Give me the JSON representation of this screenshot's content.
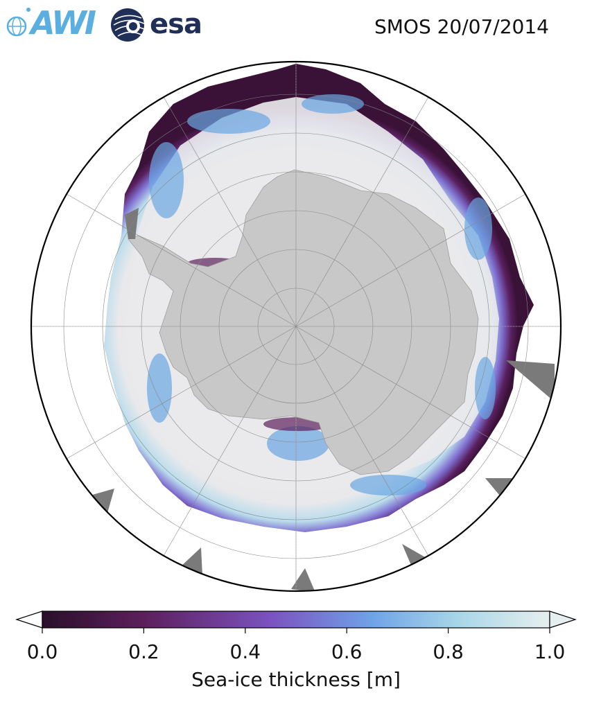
{
  "header": {
    "title": "SMOS 20/07/2014",
    "logos": [
      {
        "name": "AWI",
        "text": "AWI",
        "color": "#5aaee0"
      },
      {
        "name": "esa",
        "text": "esa",
        "color": "#1f2f57"
      }
    ]
  },
  "map": {
    "projection": "south-polar-stereographic",
    "region": "Antarctica / Southern Ocean",
    "colors": {
      "land": "#c8c8c8",
      "thick_ice": "#e9e9ec",
      "no_data": "#7a7a7a",
      "ocean": "#ffffff",
      "gridlines": "#888888"
    }
  },
  "colorbar": {
    "label": "Sea-ice thickness [m]",
    "min": 0.0,
    "max": 1.0,
    "extend": "both",
    "ticks": [
      "0.0",
      "0.2",
      "0.4",
      "0.6",
      "0.8",
      "1.0"
    ],
    "tick_values": [
      0.0,
      0.2,
      0.4,
      0.6,
      0.8,
      1.0
    ],
    "colormap_stops": [
      "#2a0f2a",
      "#5c1f5c",
      "#7b52c0",
      "#6fa3e8",
      "#a8d6e8",
      "#e6efef"
    ]
  }
}
